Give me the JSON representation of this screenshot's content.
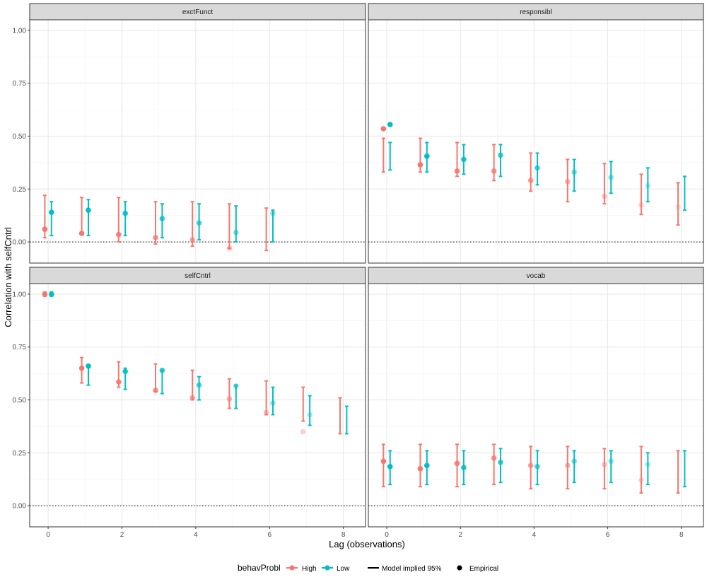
{
  "chart_data": {
    "type": "scatter",
    "facets": [
      "exctFunct",
      "responsibl",
      "selfCntrl",
      "vocab"
    ],
    "xlabel": "Lag (observations)",
    "ylabel": "Correlation with selfCntrl",
    "xlim": [
      -0.5,
      8.6
    ],
    "ylim": [
      -0.1,
      1.05
    ],
    "x_ticks": [
      0,
      2,
      4,
      6,
      8
    ],
    "x_tick_labels": [
      "0",
      "2",
      "4",
      "6",
      "8"
    ],
    "y_ticks": [
      0,
      0.25,
      0.5,
      0.75,
      1
    ],
    "y_tick_labels": [
      "0.00",
      "0.25",
      "0.50",
      "0.75",
      "1.00"
    ],
    "reference_line_y": 0,
    "grid": true,
    "legend": {
      "title": "behavProbl",
      "groups": [
        "High",
        "Low"
      ],
      "colors": {
        "High": "#F8766D",
        "Low": "#00BFC4"
      },
      "line_label": "Model implied 95%",
      "point_label": "Empirical",
      "position": "bottom"
    },
    "panels": [
      {
        "facet": "exctFunct",
        "series": [
          {
            "group": "High",
            "intervals": [
              [
                0,
                0.02,
                0.22
              ],
              [
                1,
                0.04,
                0.21
              ],
              [
                2,
                0.0,
                0.21
              ],
              [
                3,
                -0.01,
                0.19
              ],
              [
                4,
                -0.02,
                0.19
              ],
              [
                5,
                -0.03,
                0.18
              ],
              [
                6,
                -0.04,
                0.16
              ]
            ],
            "points": [
              [
                0,
                0.06,
                1
              ],
              [
                1,
                0.04,
                1
              ],
              [
                2,
                0.035,
                0.9
              ],
              [
                3,
                0.02,
                0.8
              ],
              [
                4,
                0.01,
                0.65
              ],
              [
                5,
                -0.03,
                0.45
              ]
            ]
          },
          {
            "group": "Low",
            "intervals": [
              [
                0,
                0.03,
                0.19
              ],
              [
                1,
                0.03,
                0.2
              ],
              [
                2,
                0.03,
                0.19
              ],
              [
                3,
                0.02,
                0.18
              ],
              [
                4,
                0.01,
                0.18
              ],
              [
                5,
                0.0,
                0.17
              ],
              [
                6,
                0.0,
                0.15
              ]
            ],
            "points": [
              [
                0,
                0.14,
                1
              ],
              [
                1,
                0.15,
                1
              ],
              [
                2,
                0.135,
                0.9
              ],
              [
                3,
                0.11,
                0.8
              ],
              [
                4,
                0.09,
                0.7
              ],
              [
                5,
                0.045,
                0.55
              ],
              [
                6,
                0.135,
                0.45
              ]
            ]
          }
        ]
      },
      {
        "facet": "responsibl",
        "series": [
          {
            "group": "High",
            "intervals": [
              [
                0,
                0.33,
                0.49
              ],
              [
                1,
                0.33,
                0.49
              ],
              [
                2,
                0.31,
                0.47
              ],
              [
                3,
                0.29,
                0.46
              ],
              [
                4,
                0.24,
                0.42
              ],
              [
                5,
                0.19,
                0.39
              ],
              [
                6,
                0.18,
                0.37
              ],
              [
                7,
                0.13,
                0.32
              ],
              [
                8,
                0.08,
                0.28
              ]
            ],
            "points": [
              [
                0,
                0.535,
                1
              ],
              [
                1,
                0.365,
                1
              ],
              [
                2,
                0.335,
                0.9
              ],
              [
                3,
                0.335,
                0.8
              ],
              [
                4,
                0.29,
                0.7
              ],
              [
                5,
                0.285,
                0.55
              ],
              [
                6,
                0.215,
                0.45
              ],
              [
                7,
                0.175,
                0.35
              ],
              [
                8,
                0.165,
                0.25
              ]
            ]
          },
          {
            "group": "Low",
            "intervals": [
              [
                0,
                0.34,
                0.47
              ],
              [
                1,
                0.33,
                0.47
              ],
              [
                2,
                0.32,
                0.46
              ],
              [
                3,
                0.31,
                0.46
              ],
              [
                4,
                0.27,
                0.42
              ],
              [
                5,
                0.24,
                0.39
              ],
              [
                6,
                0.23,
                0.38
              ],
              [
                7,
                0.19,
                0.35
              ],
              [
                8,
                0.15,
                0.31
              ]
            ],
            "points": [
              [
                0,
                0.555,
                1
              ],
              [
                1,
                0.405,
                1
              ],
              [
                2,
                0.39,
                0.9
              ],
              [
                3,
                0.41,
                0.8
              ],
              [
                4,
                0.35,
                0.7
              ],
              [
                5,
                0.33,
                0.55
              ],
              [
                6,
                0.305,
                0.45
              ],
              [
                7,
                0.265,
                0.35
              ]
            ]
          }
        ]
      },
      {
        "facet": "selfCntrl",
        "series": [
          {
            "group": "High",
            "intervals": [
              [
                0,
                0.99,
                1.01
              ],
              [
                1,
                0.58,
                0.7
              ],
              [
                2,
                0.56,
                0.68
              ],
              [
                3,
                0.54,
                0.67
              ],
              [
                4,
                0.5,
                0.64
              ],
              [
                5,
                0.46,
                0.6
              ],
              [
                6,
                0.43,
                0.59
              ],
              [
                7,
                0.4,
                0.56
              ],
              [
                8,
                0.34,
                0.51
              ]
            ],
            "points": [
              [
                0,
                1.0,
                1
              ],
              [
                1,
                0.65,
                1
              ],
              [
                2,
                0.585,
                0.9
              ],
              [
                3,
                0.545,
                0.8
              ],
              [
                4,
                0.51,
                0.7
              ],
              [
                5,
                0.505,
                0.55
              ],
              [
                6,
                0.44,
                0.45
              ],
              [
                7,
                0.35,
                0.35
              ]
            ]
          },
          {
            "group": "Low",
            "intervals": [
              [
                0,
                0.99,
                1.01
              ],
              [
                1,
                0.57,
                0.66
              ],
              [
                2,
                0.55,
                0.65
              ],
              [
                3,
                0.53,
                0.64
              ],
              [
                4,
                0.5,
                0.61
              ],
              [
                5,
                0.46,
                0.57
              ],
              [
                6,
                0.43,
                0.56
              ],
              [
                7,
                0.38,
                0.52
              ],
              [
                8,
                0.34,
                0.47
              ]
            ],
            "points": [
              [
                0,
                1.0,
                1
              ],
              [
                1,
                0.66,
                1
              ],
              [
                2,
                0.635,
                0.9
              ],
              [
                3,
                0.64,
                0.8
              ],
              [
                4,
                0.57,
                0.7
              ],
              [
                5,
                0.565,
                0.55
              ],
              [
                6,
                0.485,
                0.45
              ],
              [
                7,
                0.43,
                0.35
              ]
            ]
          }
        ]
      },
      {
        "facet": "vocab",
        "series": [
          {
            "group": "High",
            "intervals": [
              [
                0,
                0.09,
                0.29
              ],
              [
                1,
                0.09,
                0.29
              ],
              [
                2,
                0.09,
                0.29
              ],
              [
                3,
                0.1,
                0.29
              ],
              [
                4,
                0.08,
                0.28
              ],
              [
                5,
                0.08,
                0.28
              ],
              [
                6,
                0.08,
                0.27
              ],
              [
                7,
                0.06,
                0.28
              ],
              [
                8,
                0.06,
                0.26
              ]
            ],
            "points": [
              [
                0,
                0.21,
                1
              ],
              [
                1,
                0.175,
                1
              ],
              [
                2,
                0.2,
                0.9
              ],
              [
                3,
                0.225,
                0.8
              ],
              [
                4,
                0.19,
                0.7
              ],
              [
                5,
                0.19,
                0.55
              ],
              [
                6,
                0.195,
                0.45
              ],
              [
                7,
                0.12,
                0.35
              ]
            ]
          },
          {
            "group": "Low",
            "intervals": [
              [
                0,
                0.1,
                0.26
              ],
              [
                1,
                0.1,
                0.26
              ],
              [
                2,
                0.1,
                0.26
              ],
              [
                3,
                0.11,
                0.27
              ],
              [
                4,
                0.1,
                0.26
              ],
              [
                5,
                0.11,
                0.26
              ],
              [
                6,
                0.11,
                0.26
              ],
              [
                7,
                0.1,
                0.25
              ],
              [
                8,
                0.09,
                0.26
              ]
            ],
            "points": [
              [
                0,
                0.185,
                1
              ],
              [
                1,
                0.19,
                1
              ],
              [
                2,
                0.18,
                0.9
              ],
              [
                3,
                0.205,
                0.8
              ],
              [
                4,
                0.185,
                0.7
              ],
              [
                5,
                0.21,
                0.55
              ],
              [
                6,
                0.21,
                0.45
              ],
              [
                7,
                0.195,
                0.35
              ]
            ]
          }
        ]
      }
    ]
  }
}
